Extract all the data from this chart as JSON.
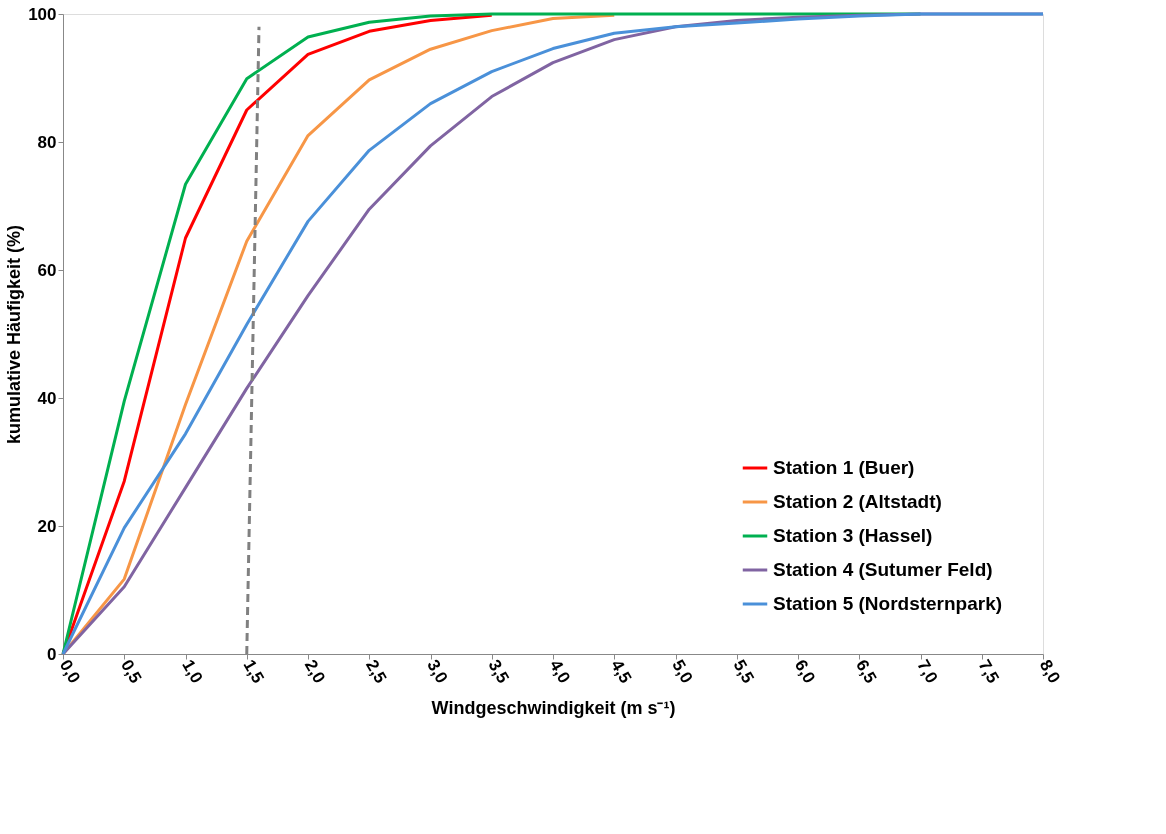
{
  "chart_data": {
    "type": "line",
    "xlabel": "Windgeschwindigkeit (m s⁻¹)",
    "ylabel": "kumulative Häufigkeit (%)",
    "x": [
      0,
      0.5,
      1,
      1.5,
      2,
      2.5,
      3,
      3.5,
      4,
      4.5,
      5,
      5.5,
      6,
      6.5,
      7,
      7.5,
      8
    ],
    "series": [
      {
        "name": "Station 1 (Buer)",
        "color": "#ff0000",
        "values": [
          0,
          27,
          65,
          85,
          93.7,
          97.3,
          99,
          99.8,
          null,
          null,
          null,
          null,
          null,
          null,
          null,
          null,
          null
        ]
      },
      {
        "name": "Station 2 (Altstadt)",
        "color": "#f79646",
        "values": [
          0,
          11.7,
          39,
          64.5,
          81,
          89.7,
          94.5,
          97.4,
          99.3,
          99.8,
          null,
          null,
          null,
          null,
          null,
          null,
          null
        ]
      },
      {
        "name": "Station 3 (Hassel)",
        "color": "#00b050",
        "values": [
          0,
          39.5,
          73.4,
          89.9,
          96.4,
          98.7,
          99.7,
          100,
          100,
          100,
          100,
          100,
          100,
          100,
          100,
          null,
          null
        ]
      },
      {
        "name": "Station 4 (Sutumer Feld)",
        "color": "#8064a2",
        "values": [
          0,
          10.5,
          26,
          41.5,
          56,
          69.5,
          79.4,
          87.1,
          92.4,
          96,
          98,
          99,
          99.5,
          99.8,
          100,
          100,
          100
        ]
      },
      {
        "name": "Station 5 (Nordsternpark)",
        "color": "#4a90d9",
        "values": [
          0,
          19.7,
          34.4,
          51.5,
          67.6,
          78.7,
          86,
          91,
          94.6,
          97,
          98,
          98.6,
          99.2,
          99.7,
          100,
          100,
          100
        ]
      },
      {
        "type": "line",
        "line_style": "dashed",
        "color": "#808080",
        "x": [
          1.5,
          1.6
        ],
        "values": [
          0,
          98
        ]
      }
    ],
    "xlim": [
      0,
      8
    ],
    "ylim": [
      0,
      100
    ],
    "xticks": [
      {
        "value": 0,
        "label": "0,0"
      },
      {
        "value": 0.5,
        "label": "0,5"
      },
      {
        "value": 1,
        "label": "1,0"
      },
      {
        "value": 1.5,
        "label": "1,5"
      },
      {
        "value": 2,
        "label": "2,0"
      },
      {
        "value": 2.5,
        "label": "2,5"
      },
      {
        "value": 3,
        "label": "3,0"
      },
      {
        "value": 3.5,
        "label": "3,5"
      },
      {
        "value": 4,
        "label": "4,0"
      },
      {
        "value": 4.5,
        "label": "4,5"
      },
      {
        "value": 5,
        "label": "5,0"
      },
      {
        "value": 5.5,
        "label": "5,5"
      },
      {
        "value": 6,
        "label": "6,0"
      },
      {
        "value": 6.5,
        "label": "6,5"
      },
      {
        "value": 7,
        "label": "7,0"
      },
      {
        "value": 7.5,
        "label": "7,5"
      },
      {
        "value": 8,
        "label": "8,0"
      }
    ],
    "yticks": [
      0,
      20,
      40,
      60,
      80,
      100
    ],
    "grid": false,
    "legend": "bottom right",
    "marker": "none",
    "line_style": "solid"
  }
}
